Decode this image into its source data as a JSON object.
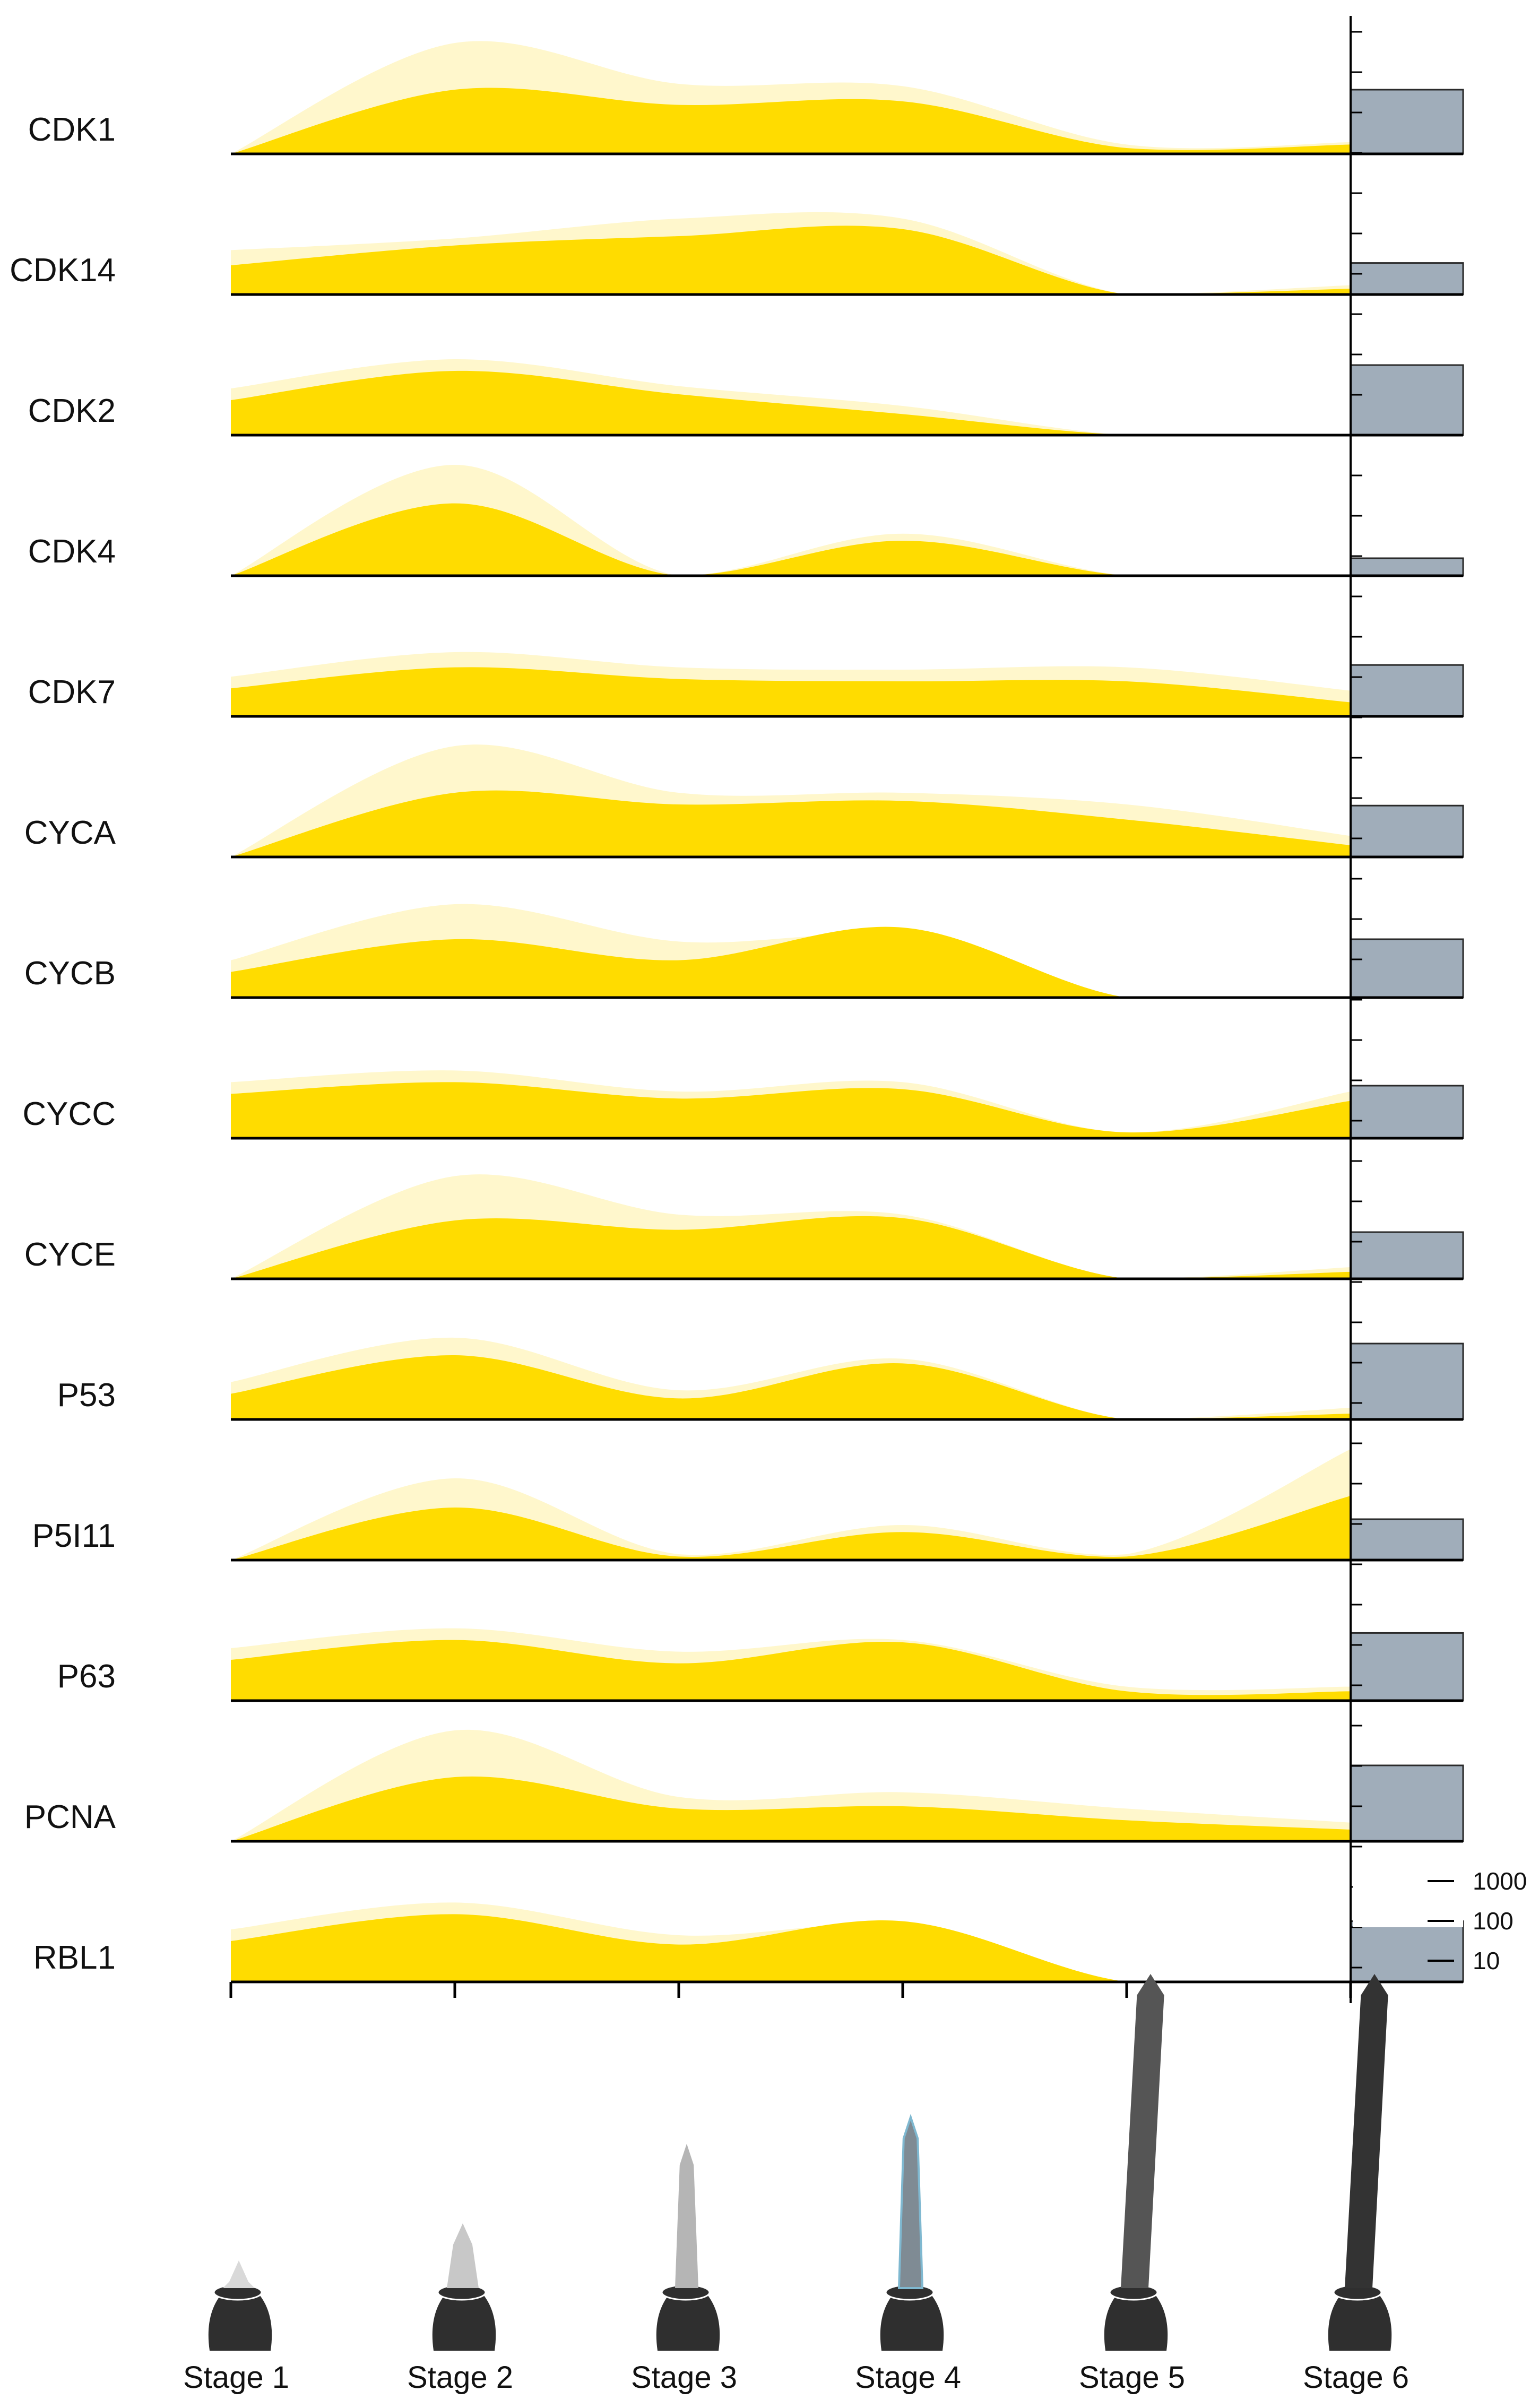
{
  "chart_data": {
    "type": "area",
    "x": [
      "Stage 1",
      "Stage 2",
      "Stage 3",
      "Stage 4",
      "Stage 5",
      "Stage 6"
    ],
    "rows": [
      {
        "label": "CDK1",
        "outer": [
          0.0,
          0.95,
          0.6,
          0.58,
          0.08,
          0.1
        ],
        "inner": [
          0.0,
          0.55,
          0.42,
          0.45,
          0.05,
          0.08
        ],
        "bar": 0.55
      },
      {
        "label": "CDK14",
        "outer": [
          0.38,
          0.48,
          0.65,
          0.65,
          0.0,
          0.08
        ],
        "inner": [
          0.25,
          0.42,
          0.5,
          0.56,
          0.0,
          0.05
        ],
        "bar": 0.27
      },
      {
        "label": "CDK2",
        "outer": [
          0.4,
          0.65,
          0.42,
          0.25,
          0.0,
          0.0
        ],
        "inner": [
          0.3,
          0.55,
          0.35,
          0.18,
          0.0,
          0.0
        ],
        "bar": 0.6
      },
      {
        "label": "CDK4",
        "outer": [
          0.0,
          0.95,
          0.0,
          0.36,
          0.0,
          0.0
        ],
        "inner": [
          0.0,
          0.62,
          0.0,
          0.3,
          0.0,
          0.0
        ],
        "bar": 0.15
      },
      {
        "label": "CDK7",
        "outer": [
          0.34,
          0.55,
          0.42,
          0.4,
          0.42,
          0.22
        ],
        "inner": [
          0.24,
          0.42,
          0.32,
          0.3,
          0.3,
          0.12
        ],
        "bar": 0.44
      },
      {
        "label": "CYCA",
        "outer": [
          0.0,
          0.95,
          0.55,
          0.55,
          0.45,
          0.18
        ],
        "inner": [
          0.0,
          0.55,
          0.45,
          0.48,
          0.32,
          0.1
        ],
        "bar": 0.44
      },
      {
        "label": "CYCB",
        "outer": [
          0.32,
          0.8,
          0.48,
          0.52,
          0.0,
          0.0
        ],
        "inner": [
          0.22,
          0.5,
          0.32,
          0.6,
          0.0,
          0.0
        ],
        "bar": 0.5
      },
      {
        "label": "CYCC",
        "outer": [
          0.48,
          0.58,
          0.4,
          0.48,
          0.05,
          0.4
        ],
        "inner": [
          0.38,
          0.48,
          0.34,
          0.42,
          0.05,
          0.32
        ],
        "bar": 0.45
      },
      {
        "label": "CYCE",
        "outer": [
          0.0,
          0.88,
          0.55,
          0.55,
          0.0,
          0.1
        ],
        "inner": [
          0.0,
          0.5,
          0.42,
          0.52,
          0.0,
          0.06
        ],
        "bar": 0.4
      },
      {
        "label": "P53",
        "outer": [
          0.32,
          0.7,
          0.25,
          0.52,
          0.0,
          0.1
        ],
        "inner": [
          0.22,
          0.55,
          0.18,
          0.48,
          0.0,
          0.05
        ],
        "bar": 0.65
      },
      {
        "label": "P5I11",
        "outer": [
          0.0,
          0.7,
          0.05,
          0.3,
          0.05,
          0.95
        ],
        "inner": [
          0.0,
          0.45,
          0.03,
          0.24,
          0.03,
          0.55
        ],
        "bar": 0.35
      },
      {
        "label": "P63",
        "outer": [
          0.45,
          0.62,
          0.42,
          0.52,
          0.12,
          0.12
        ],
        "inner": [
          0.35,
          0.52,
          0.32,
          0.5,
          0.08,
          0.08
        ],
        "bar": 0.58
      },
      {
        "label": "PCNA",
        "outer": [
          0.0,
          0.95,
          0.38,
          0.42,
          0.28,
          0.16
        ],
        "inner": [
          0.0,
          0.55,
          0.28,
          0.3,
          0.18,
          0.1
        ],
        "bar": 0.65
      },
      {
        "label": "RBL1",
        "outer": [
          0.45,
          0.68,
          0.4,
          0.48,
          0.0,
          0.0
        ],
        "inner": [
          0.35,
          0.58,
          0.32,
          0.52,
          0.0,
          0.0
        ],
        "bar": 0.52
      }
    ],
    "scale_ticks": [
      "1000",
      "100",
      "10"
    ],
    "colors": {
      "outer_area": "#fff7cc",
      "inner_area": "#ffdc00",
      "bar": "#a0adba",
      "axis": "#000000"
    },
    "stages": [
      {
        "label": "Stage 1",
        "color": "#2f2f2f",
        "highlight": "#d9d9d9"
      },
      {
        "label": "Stage 2",
        "color": "#2f2f2f",
        "highlight": "#c8c8c8"
      },
      {
        "label": "Stage 3",
        "color": "#2f2f2f",
        "highlight": "#b5b5b5"
      },
      {
        "label": "Stage 4",
        "color": "#2f2f2f",
        "highlight": "#7f8b94"
      },
      {
        "label": "Stage 5",
        "color": "#2f2f2f",
        "highlight": "#555555"
      },
      {
        "label": "Stage 6",
        "color": "#2f2f2f",
        "highlight": "#333333"
      }
    ]
  }
}
